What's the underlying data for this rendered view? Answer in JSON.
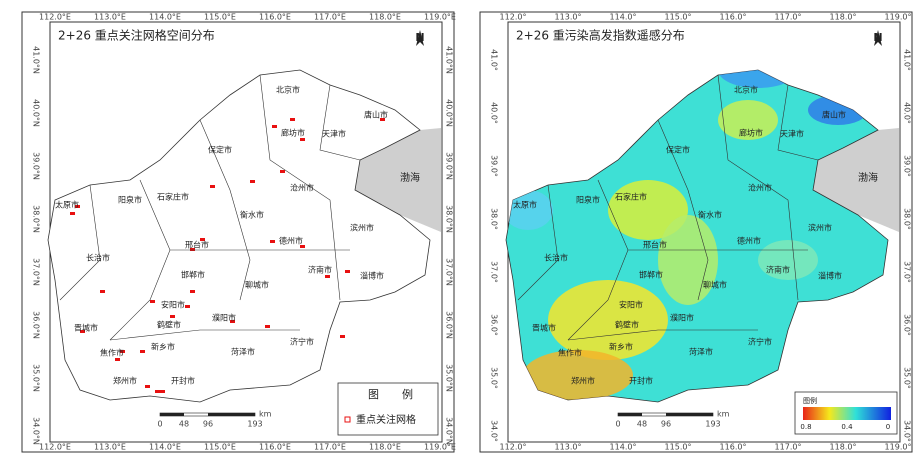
{
  "left": {
    "title": "2+26 重点关注网格空间分布",
    "x_ticks": [
      "112.0°E",
      "113.0°E",
      "114.0°E",
      "115.0°E",
      "116.0°E",
      "117.0°E",
      "118.0°E",
      "119.0°E"
    ],
    "y_ticks": [
      "41.0°N",
      "40.0°N",
      "39.0°N",
      "38.0°N",
      "37.0°N",
      "36.0°N",
      "35.0°N",
      "34.0°N"
    ],
    "north": "N",
    "cities": [
      "北京市",
      "唐山市",
      "廊坊市",
      "天津市",
      "保定市",
      "沧州市",
      "太原市",
      "阳泉市",
      "石家庄市",
      "衡水市",
      "滨州市",
      "德州市",
      "邢台市",
      "济南市",
      "淄博市",
      "长治市",
      "邯郸市",
      "聊城市",
      "安阳市",
      "鹤壁市",
      "濮阳市",
      "晋城市",
      "新乡市",
      "菏泽市",
      "济宁市",
      "焦作市",
      "郑州市",
      "开封市"
    ],
    "sea": "渤海",
    "legend": {
      "title": [
        "图",
        "例"
      ],
      "item": "重点关注网格"
    },
    "scale": [
      "0",
      "48",
      "96",
      "193"
    ],
    "scale_unit": "km"
  },
  "right": {
    "title": "2+26 重污染高发指数遥感分布",
    "x_ticks": [
      "112.0°",
      "113.0°",
      "114.0°",
      "115.0°",
      "116.0°",
      "117.0°",
      "118.0°",
      "119.0°"
    ],
    "y_ticks": [
      "41.0°",
      "40.0°",
      "39.0°",
      "38.0°",
      "37.0°",
      "36.0°",
      "35.0°",
      "34.0°"
    ],
    "north": "N",
    "cities": [
      "北京市",
      "唐山市",
      "廊坊市",
      "天津市",
      "保定市",
      "沧州市",
      "太原市",
      "阳泉市",
      "石家庄市",
      "衡水市",
      "滨州市",
      "德州市",
      "邢台市",
      "济南市",
      "淄博市",
      "长治市",
      "邯郸市",
      "聊城市",
      "安阳市",
      "鹤壁市",
      "濮阳市",
      "晋城市",
      "新乡市",
      "菏泽市",
      "济宁市",
      "焦作市",
      "郑州市",
      "开封市"
    ],
    "sea": "渤海",
    "legend": {
      "title": "图例",
      "labels": [
        "0.8",
        "0.4",
        "0"
      ]
    },
    "scale": [
      "0",
      "48",
      "96",
      "193"
    ],
    "scale_unit": "km"
  }
}
